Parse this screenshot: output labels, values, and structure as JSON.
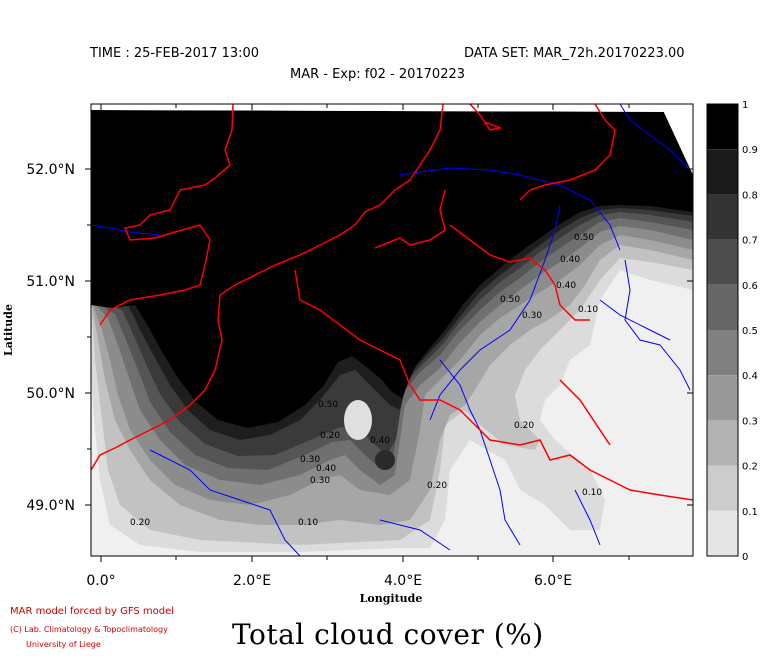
{
  "header": {
    "time": "TIME : 25-FEB-2017 13:00",
    "dataset": "DATA SET: MAR_72h.20170223.00",
    "experiment": "MAR - Exp: f02 - 20170223"
  },
  "map": {
    "title": "Total cloud cover (%)",
    "x_axis_label": "Longitude",
    "y_axis_label": "Latitude",
    "x_ticks": [
      "0.0°",
      "2.0°E",
      "4.0°E",
      "6.0°E"
    ],
    "y_ticks": [
      "52.0°N",
      "51.0°N",
      "50.0°N",
      "49.0°N"
    ],
    "colorbar": {
      "labels": [
        "1",
        "0.9",
        "0.8",
        "0.7",
        "0.6",
        "0.5",
        "0.4",
        "0.3",
        "0.2",
        "0.1",
        "0"
      ],
      "colors": [
        "#000000",
        "#1a1a1a",
        "#333333",
        "#4d4d4d",
        "#666666",
        "#808080",
        "#999999",
        "#b3b3b3",
        "#cccccc",
        "#e6e6e6",
        "#ffffff"
      ]
    },
    "contour_labels": [
      "0.50",
      "0.40",
      "0.30",
      "0.40",
      "0.20",
      "0.10",
      "0.20",
      "0.50",
      "0.40",
      "0.30",
      "0.20",
      "0.10",
      "0.30",
      "0.40",
      "0.50",
      "0.20",
      "0.10"
    ],
    "border_color": "#ff0000",
    "river_color": "#0000ff"
  },
  "credits": {
    "line1": "MAR model forced by GFS model",
    "line2": "(C) Lab. Climatology & Topoclimatology",
    "line3": "University of Liege"
  }
}
